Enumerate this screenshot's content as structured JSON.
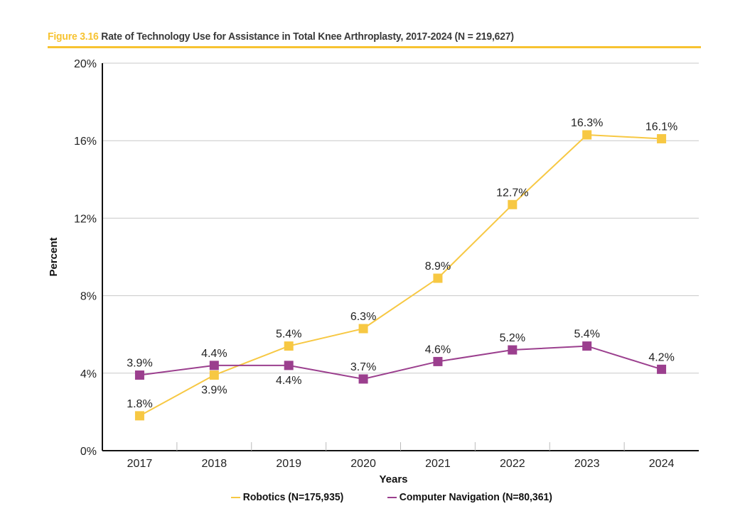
{
  "chart_data": {
    "type": "line",
    "figure_label": "Figure 3.16",
    "title": "Rate of Technology Use for Assistance in Total Knee Arthroplasty, 2017-2024 (N = 219,627)",
    "xlabel": "Years",
    "ylabel": "Percent",
    "ylim": [
      0,
      20
    ],
    "yticks": [
      "0%",
      "4%",
      "8%",
      "12%",
      "16%",
      "20%"
    ],
    "grid": true,
    "legend_position": "bottom",
    "categories": [
      "2017",
      "2018",
      "2019",
      "2020",
      "2021",
      "2022",
      "2023",
      "2024"
    ],
    "series": [
      {
        "name": "Robotics (N=175,935)",
        "color": "#f7c843",
        "values": [
          1.8,
          3.9,
          5.4,
          6.3,
          8.9,
          12.7,
          16.3,
          16.1
        ],
        "labels": [
          "1.8%",
          "3.9%",
          "5.4%",
          "6.3%",
          "8.9%",
          "12.7%",
          "16.3%",
          "16.1%"
        ],
        "label_below": [
          false,
          true,
          false,
          false,
          false,
          false,
          false,
          false
        ]
      },
      {
        "name": "Computer Navigation (N=80,361)",
        "color": "#9b3f8e",
        "values": [
          3.9,
          4.4,
          4.4,
          3.7,
          4.6,
          5.2,
          5.4,
          4.2
        ],
        "labels": [
          "3.9%",
          "4.4%",
          "4.4%",
          "3.7%",
          "4.6%",
          "5.2%",
          "5.4%",
          "4.2%"
        ],
        "label_below": [
          false,
          false,
          true,
          false,
          false,
          false,
          false,
          false
        ]
      }
    ]
  }
}
